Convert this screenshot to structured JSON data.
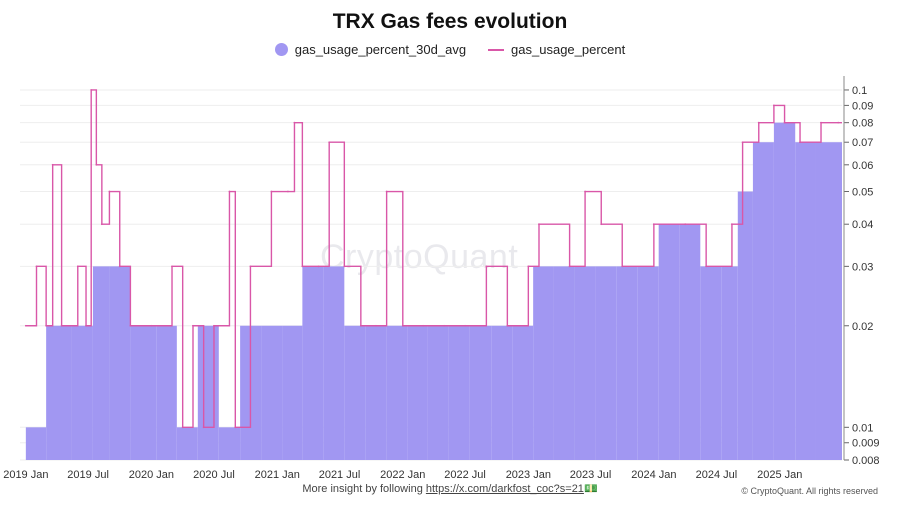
{
  "chart_data": {
    "type": "bar",
    "title": "TRX Gas fees evolution",
    "yscale": "log",
    "ylim": [
      0.008,
      0.11
    ],
    "xlim": [
      "2018-12-15",
      "2025-07-01"
    ],
    "y_ticks": [
      {
        "v": 0.1,
        "label": "0.1"
      },
      {
        "v": 0.09,
        "label": "0.09"
      },
      {
        "v": 0.08,
        "label": "0.08"
      },
      {
        "v": 0.07,
        "label": "0.07"
      },
      {
        "v": 0.06,
        "label": "0.06"
      },
      {
        "v": 0.05,
        "label": "0.05"
      },
      {
        "v": 0.04,
        "label": "0.04"
      },
      {
        "v": 0.03,
        "label": "0.03"
      },
      {
        "v": 0.02,
        "label": "0.02"
      },
      {
        "v": 0.01,
        "label": "0.01"
      },
      {
        "v": 0.009,
        "label": "0.009"
      },
      {
        "v": 0.008,
        "label": "0.008"
      }
    ],
    "x_ticks": [
      {
        "date": "2019-01-01",
        "label": "2019 Jan"
      },
      {
        "date": "2019-07-01",
        "label": "2019 Jul"
      },
      {
        "date": "2020-01-01",
        "label": "2020 Jan"
      },
      {
        "date": "2020-07-01",
        "label": "2020 Jul"
      },
      {
        "date": "2021-01-01",
        "label": "2021 Jan"
      },
      {
        "date": "2021-07-01",
        "label": "2021 Jul"
      },
      {
        "date": "2022-01-01",
        "label": "2022 Jan"
      },
      {
        "date": "2022-07-01",
        "label": "2022 Jul"
      },
      {
        "date": "2023-01-01",
        "label": "2023 Jan"
      },
      {
        "date": "2023-07-01",
        "label": "2023 Jul"
      },
      {
        "date": "2024-01-01",
        "label": "2024 Jan"
      },
      {
        "date": "2024-07-01",
        "label": "2024 Jul"
      },
      {
        "date": "2025-01-01",
        "label": "2025 Jan"
      }
    ],
    "series": [
      {
        "name": "gas_usage_percent_30d_avg",
        "kind": "bar",
        "color": "#a197f2",
        "points": [
          [
            "2019-01-01",
            0.01
          ],
          [
            "2019-03-01",
            0.02
          ],
          [
            "2019-05-15",
            0.02
          ],
          [
            "2019-07-15",
            0.03
          ],
          [
            "2019-09-01",
            0.03
          ],
          [
            "2019-11-01",
            0.02
          ],
          [
            "2020-01-15",
            0.02
          ],
          [
            "2020-03-15",
            0.01
          ],
          [
            "2020-05-15",
            0.02
          ],
          [
            "2020-07-15",
            0.01
          ],
          [
            "2020-09-15",
            0.02
          ],
          [
            "2020-11-15",
            0.02
          ],
          [
            "2021-01-15",
            0.02
          ],
          [
            "2021-03-15",
            0.03
          ],
          [
            "2021-05-15",
            0.03
          ],
          [
            "2021-07-15",
            0.02
          ],
          [
            "2021-09-15",
            0.02
          ],
          [
            "2021-11-15",
            0.02
          ],
          [
            "2022-01-15",
            0.02
          ],
          [
            "2022-03-15",
            0.02
          ],
          [
            "2022-05-15",
            0.02
          ],
          [
            "2022-07-15",
            0.02
          ],
          [
            "2022-09-15",
            0.02
          ],
          [
            "2022-11-15",
            0.02
          ],
          [
            "2023-01-15",
            0.03
          ],
          [
            "2023-03-15",
            0.03
          ],
          [
            "2023-05-15",
            0.03
          ],
          [
            "2023-07-15",
            0.03
          ],
          [
            "2023-09-15",
            0.03
          ],
          [
            "2023-11-15",
            0.03
          ],
          [
            "2024-01-15",
            0.04
          ],
          [
            "2024-03-15",
            0.04
          ],
          [
            "2024-05-15",
            0.03
          ],
          [
            "2024-07-15",
            0.03
          ],
          [
            "2024-09-01",
            0.05
          ],
          [
            "2024-10-15",
            0.07
          ],
          [
            "2024-12-15",
            0.08
          ],
          [
            "2025-02-15",
            0.07
          ],
          [
            "2025-04-15",
            0.07
          ],
          [
            "2025-06-15",
            0.07
          ]
        ]
      },
      {
        "name": "gas_usage_percent",
        "kind": "line",
        "color": "#d957a8",
        "points": [
          [
            "2019-01-01",
            0.02
          ],
          [
            "2019-02-01",
            0.03
          ],
          [
            "2019-03-01",
            0.02
          ],
          [
            "2019-03-20",
            0.06
          ],
          [
            "2019-04-15",
            0.02
          ],
          [
            "2019-06-01",
            0.03
          ],
          [
            "2019-06-25",
            0.02
          ],
          [
            "2019-07-10",
            0.1
          ],
          [
            "2019-07-25",
            0.06
          ],
          [
            "2019-08-10",
            0.04
          ],
          [
            "2019-09-01",
            0.05
          ],
          [
            "2019-10-01",
            0.03
          ],
          [
            "2019-11-01",
            0.02
          ],
          [
            "2020-01-01",
            0.02
          ],
          [
            "2020-03-01",
            0.03
          ],
          [
            "2020-04-01",
            0.01
          ],
          [
            "2020-05-01",
            0.02
          ],
          [
            "2020-06-01",
            0.01
          ],
          [
            "2020-07-01",
            0.02
          ],
          [
            "2020-08-15",
            0.05
          ],
          [
            "2020-09-01",
            0.01
          ],
          [
            "2020-10-15",
            0.03
          ],
          [
            "2020-12-15",
            0.05
          ],
          [
            "2021-02-01",
            0.05
          ],
          [
            "2021-02-20",
            0.08
          ],
          [
            "2021-03-15",
            0.03
          ],
          [
            "2021-05-01",
            0.03
          ],
          [
            "2021-06-01",
            0.07
          ],
          [
            "2021-07-15",
            0.03
          ],
          [
            "2021-09-01",
            0.02
          ],
          [
            "2021-10-15",
            0.02
          ],
          [
            "2021-11-15",
            0.05
          ],
          [
            "2022-01-01",
            0.02
          ],
          [
            "2022-03-01",
            0.02
          ],
          [
            "2022-05-01",
            0.02
          ],
          [
            "2022-07-01",
            0.02
          ],
          [
            "2022-09-01",
            0.03
          ],
          [
            "2022-11-01",
            0.02
          ],
          [
            "2023-01-01",
            0.03
          ],
          [
            "2023-02-01",
            0.04
          ],
          [
            "2023-05-01",
            0.03
          ],
          [
            "2023-06-15",
            0.05
          ],
          [
            "2023-08-01",
            0.04
          ],
          [
            "2023-10-01",
            0.03
          ],
          [
            "2024-01-01",
            0.04
          ],
          [
            "2024-04-01",
            0.04
          ],
          [
            "2024-06-01",
            0.03
          ],
          [
            "2024-08-15",
            0.04
          ],
          [
            "2024-09-15",
            0.07
          ],
          [
            "2024-11-01",
            0.08
          ],
          [
            "2024-12-15",
            0.09
          ],
          [
            "2025-01-15",
            0.08
          ],
          [
            "2025-03-01",
            0.07
          ],
          [
            "2025-05-01",
            0.08
          ],
          [
            "2025-06-20",
            0.08
          ]
        ]
      }
    ],
    "grid": true,
    "legend": "top-center"
  },
  "watermark": "CryptoQuant",
  "footer": {
    "prefix": "More insight by following",
    "link": "https://x.com/darkfost_coc?s=21",
    "emoji": "💵"
  },
  "copyright": "© CryptoQuant. All rights reserved"
}
